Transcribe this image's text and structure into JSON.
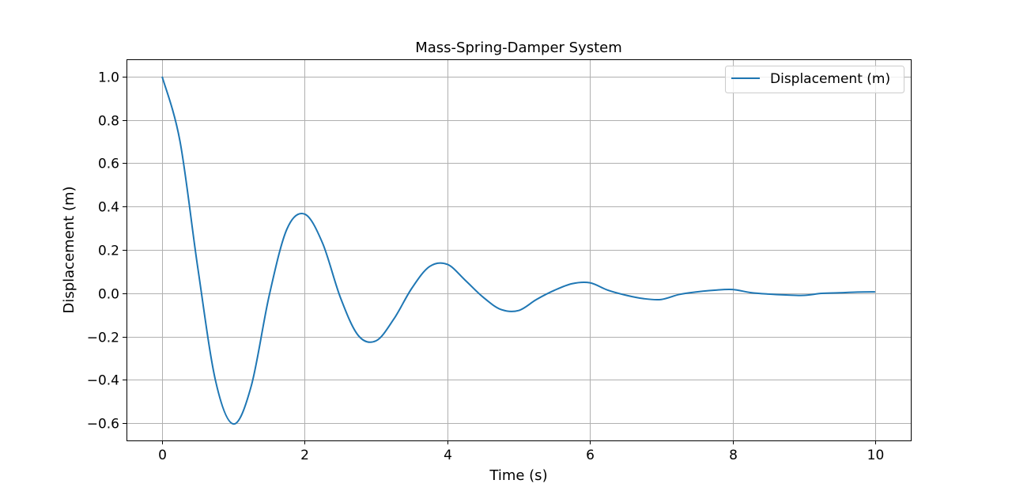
{
  "chart_data": {
    "type": "line",
    "title": "Mass-Spring-Damper System",
    "xlabel": "Time (s)",
    "ylabel": "Displacement (m)",
    "xlim": [
      -0.5,
      10.5
    ],
    "ylim": [
      -0.68,
      1.08
    ],
    "xticks": [
      0,
      2,
      4,
      6,
      8,
      10
    ],
    "xtick_labels": [
      "0",
      "2",
      "4",
      "6",
      "8",
      "10"
    ],
    "yticks": [
      -0.6,
      -0.4,
      -0.2,
      0.0,
      0.2,
      0.4,
      0.6,
      0.8,
      1.0
    ],
    "ytick_labels": [
      "−0.6",
      "−0.4",
      "−0.2",
      "0.0",
      "0.2",
      "0.4",
      "0.6",
      "0.8",
      "1.0"
    ],
    "grid": true,
    "legend_position": "top-right",
    "series": [
      {
        "name": "Displacement (m)",
        "color": "#1f77b4",
        "x": [
          0.0,
          0.25,
          0.5,
          0.75,
          1.0,
          1.25,
          1.5,
          1.75,
          2.0,
          2.25,
          2.5,
          2.75,
          3.0,
          3.25,
          3.5,
          3.75,
          4.0,
          4.25,
          4.5,
          4.75,
          5.0,
          5.25,
          5.5,
          5.75,
          6.0,
          6.25,
          6.5,
          6.75,
          7.0,
          7.25,
          7.5,
          7.75,
          8.0,
          8.25,
          8.5,
          8.75,
          9.0,
          9.25,
          9.5,
          9.75,
          10.0
        ],
        "y": [
          1.0,
          0.702,
          0.117,
          -0.406,
          -0.604,
          -0.428,
          -0.013,
          0.296,
          0.365,
          0.231,
          -0.02,
          -0.195,
          -0.22,
          -0.119,
          0.022,
          0.123,
          0.133,
          0.06,
          -0.018,
          -0.075,
          -0.08,
          -0.029,
          0.013,
          0.044,
          0.048,
          0.014,
          -0.009,
          -0.025,
          -0.029,
          -0.006,
          0.006,
          0.014,
          0.017,
          0.003,
          -0.004,
          -0.008,
          -0.01,
          -0.001,
          0.002,
          0.005,
          0.006
        ]
      }
    ]
  }
}
